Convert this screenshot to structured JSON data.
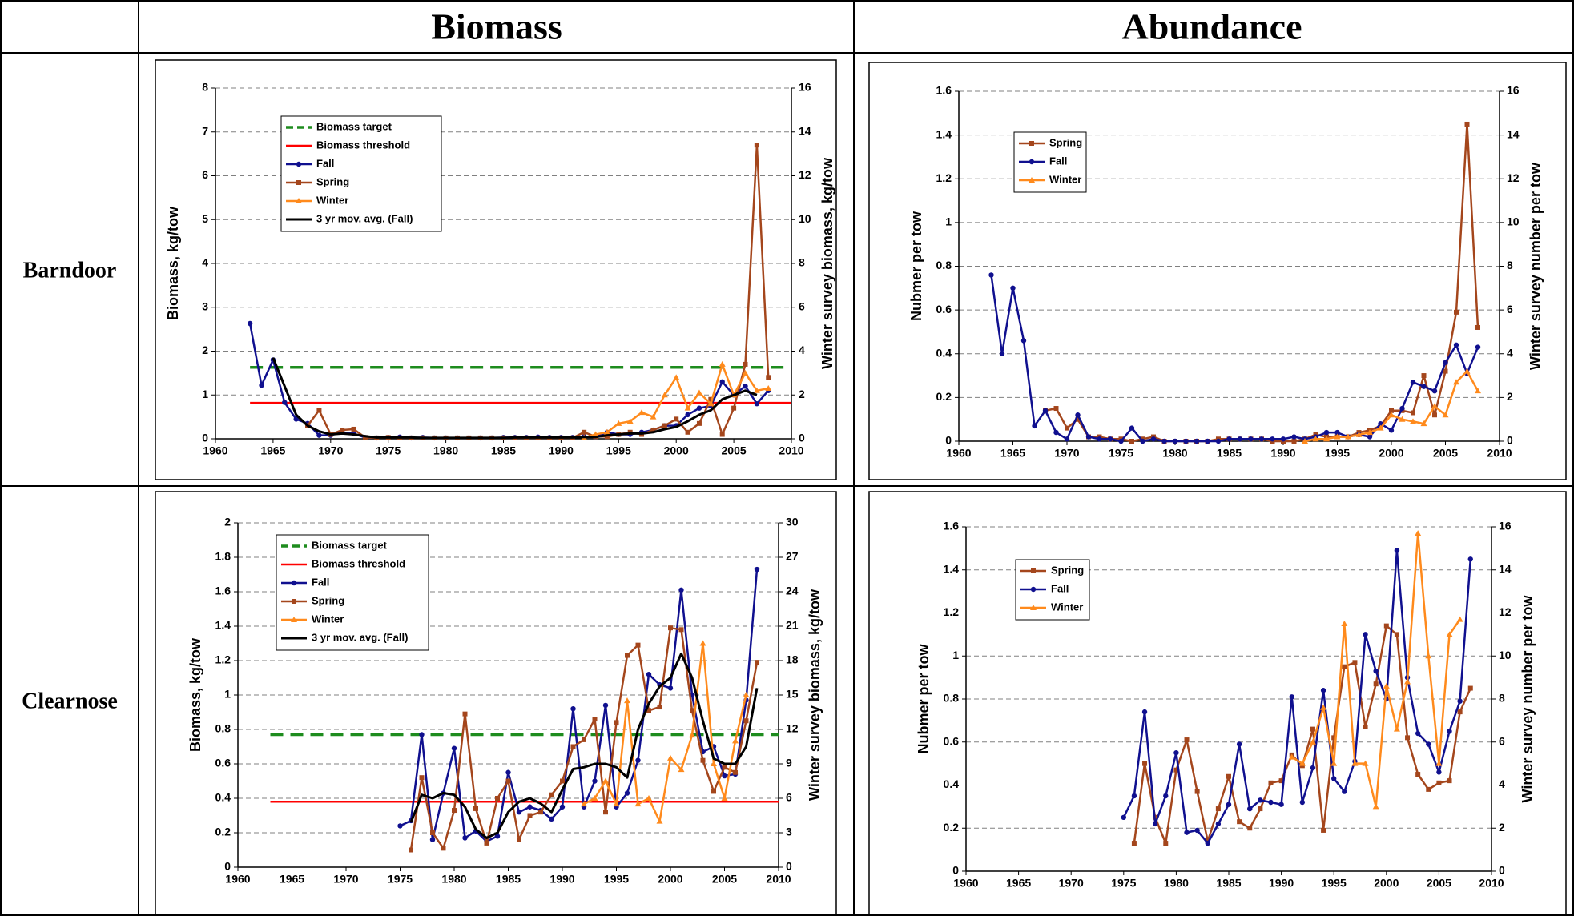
{
  "table": {
    "header": [
      "Biomass",
      "Abundance"
    ],
    "rows": [
      "Barndoor",
      "Clearnose"
    ]
  },
  "chart_data": [
    {
      "type": "line",
      "ylabel": "Biomass, kg/tow",
      "y2label": "Winter survey biomass, kg/tow",
      "grid": true,
      "xlim": [
        1960,
        2010
      ],
      "xticks": [
        1960,
        1965,
        1970,
        1975,
        1980,
        1985,
        1990,
        1995,
        2000,
        2005,
        2010
      ],
      "ylim": [
        0,
        8
      ],
      "yticks": [
        0,
        1,
        2,
        3,
        4,
        5,
        6,
        7,
        8
      ],
      "y2lim": [
        0,
        16
      ],
      "y2ticks": [
        0,
        2,
        4,
        6,
        8,
        10,
        12,
        14,
        16
      ],
      "x": [
        1963,
        1964,
        1965,
        1966,
        1967,
        1968,
        1969,
        1970,
        1971,
        1972,
        1973,
        1974,
        1975,
        1976,
        1977,
        1978,
        1979,
        1980,
        1981,
        1982,
        1983,
        1984,
        1985,
        1986,
        1987,
        1988,
        1989,
        1990,
        1991,
        1992,
        1993,
        1994,
        1995,
        1996,
        1997,
        1998,
        1999,
        2000,
        2001,
        2002,
        2003,
        2004,
        2005,
        2006,
        2007,
        2008
      ],
      "reference_lines": [
        {
          "name": "Biomass target",
          "value": 1.63,
          "x": [
            1963,
            2010
          ],
          "color": "#1e8c1e",
          "dash": true
        },
        {
          "name": "Biomass threshold",
          "value": 0.82,
          "x": [
            1963,
            2010
          ],
          "color": "#ff0000",
          "dash": false
        }
      ],
      "series": [
        {
          "name": "Fall",
          "color": "#10108f",
          "marker": "circle",
          "values": [
            2.63,
            1.22,
            1.8,
            0.83,
            0.45,
            0.35,
            0.08,
            0.08,
            0.15,
            0.12,
            0.03,
            0.02,
            0.03,
            0.04,
            0.02,
            0.03,
            0.02,
            0.02,
            0.02,
            0.02,
            0.02,
            0.02,
            0.03,
            0.03,
            0.03,
            0.04,
            0.03,
            0.03,
            0.03,
            0.05,
            0.05,
            0.15,
            0.1,
            0.1,
            0.15,
            0.2,
            0.3,
            0.3,
            0.55,
            0.7,
            0.75,
            1.3,
            1.0,
            1.2,
            0.8,
            1.1
          ]
        },
        {
          "name": "Spring",
          "color": "#a4461c",
          "marker": "square",
          "values": [
            null,
            null,
            null,
            null,
            null,
            0.3,
            0.65,
            0.1,
            0.2,
            0.22,
            0.03,
            0.02,
            0.03,
            0.02,
            0.02,
            0.02,
            0.02,
            0.02,
            0.02,
            0.02,
            0.02,
            0.02,
            0.02,
            0.02,
            0.02,
            0.02,
            0.02,
            0.02,
            0.02,
            0.15,
            0.05,
            0.05,
            0.1,
            0.15,
            0.1,
            0.2,
            0.3,
            0.45,
            0.15,
            0.35,
            0.9,
            0.1,
            0.7,
            1.7,
            6.7,
            1.4
          ]
        },
        {
          "name": "Winter",
          "color": "#ff8a1c",
          "marker": "triangle",
          "axis": "y2",
          "values": [
            null,
            null,
            null,
            null,
            null,
            null,
            null,
            null,
            null,
            null,
            null,
            null,
            null,
            null,
            null,
            null,
            null,
            null,
            null,
            null,
            null,
            null,
            null,
            null,
            null,
            null,
            null,
            null,
            null,
            0.05,
            0.2,
            0.3,
            0.7,
            0.8,
            1.2,
            1.0,
            2.0,
            2.8,
            1.4,
            2.1,
            1.6,
            3.4,
            2.0,
            3.0,
            2.2,
            2.3
          ]
        },
        {
          "name": "3 yr mov. avg. (Fall)",
          "color": "#000000",
          "marker": null,
          "values": [
            null,
            null,
            1.85,
            1.2,
            0.55,
            0.3,
            0.17,
            0.1,
            0.12,
            0.1,
            0.06,
            0.03,
            0.03,
            0.03,
            0.03,
            0.02,
            0.02,
            0.02,
            0.02,
            0.02,
            0.02,
            0.02,
            0.02,
            0.03,
            0.03,
            0.03,
            0.03,
            0.03,
            0.03,
            0.04,
            0.04,
            0.08,
            0.1,
            0.12,
            0.12,
            0.15,
            0.22,
            0.27,
            0.4,
            0.55,
            0.65,
            0.9,
            1.0,
            1.1,
            1.0,
            null
          ]
        }
      ]
    },
    {
      "type": "line",
      "ylabel": "Nubmer per tow",
      "y2label": "Winter survey number per tow",
      "grid": true,
      "xlim": [
        1960,
        2010
      ],
      "xticks": [
        1960,
        1965,
        1970,
        1975,
        1980,
        1985,
        1990,
        1995,
        2000,
        2005,
        2010
      ],
      "ylim": [
        0,
        1.6
      ],
      "yticks": [
        0,
        0.2,
        0.4,
        0.6,
        0.8,
        1,
        1.2,
        1.4,
        1.6
      ],
      "y2lim": [
        0,
        16
      ],
      "y2ticks": [
        0,
        2,
        4,
        6,
        8,
        10,
        12,
        14,
        16
      ],
      "x": [
        1963,
        1964,
        1965,
        1966,
        1967,
        1968,
        1969,
        1970,
        1971,
        1972,
        1973,
        1974,
        1975,
        1976,
        1977,
        1978,
        1979,
        1980,
        1981,
        1982,
        1983,
        1984,
        1985,
        1986,
        1987,
        1988,
        1989,
        1990,
        1991,
        1992,
        1993,
        1994,
        1995,
        1996,
        1997,
        1998,
        1999,
        2000,
        2001,
        2002,
        2003,
        2004,
        2005,
        2006,
        2007,
        2008
      ],
      "series": [
        {
          "name": "Spring",
          "color": "#a4461c",
          "marker": "square",
          "values": [
            null,
            null,
            null,
            null,
            null,
            0.14,
            0.15,
            0.06,
            0.1,
            0.02,
            0.02,
            0.01,
            0.01,
            0.0,
            0.01,
            0.02,
            0.0,
            0.0,
            0.0,
            0.0,
            0.0,
            0.01,
            0.01,
            0.01,
            0.01,
            0.01,
            0.0,
            0.0,
            0.0,
            0.01,
            0.03,
            0.02,
            0.02,
            0.02,
            0.04,
            0.05,
            0.07,
            0.14,
            0.14,
            0.13,
            0.3,
            0.12,
            0.32,
            0.59,
            1.45,
            0.52
          ]
        },
        {
          "name": "Fall",
          "color": "#10108f",
          "marker": "circle",
          "values": [
            0.76,
            0.4,
            0.7,
            0.46,
            0.07,
            0.14,
            0.04,
            0.01,
            0.12,
            0.02,
            0.01,
            0.01,
            0.0,
            0.06,
            0.0,
            0.01,
            0.0,
            0.0,
            0.0,
            0.0,
            0.0,
            0.0,
            0.01,
            0.01,
            0.01,
            0.01,
            0.01,
            0.01,
            0.02,
            0.01,
            0.02,
            0.04,
            0.04,
            0.02,
            0.03,
            0.02,
            0.08,
            0.05,
            0.15,
            0.27,
            0.25,
            0.23,
            0.36,
            0.44,
            0.31,
            0.43
          ]
        },
        {
          "name": "Winter",
          "color": "#ff8a1c",
          "marker": "triangle",
          "axis": "y2",
          "values": [
            null,
            null,
            null,
            null,
            null,
            null,
            null,
            null,
            null,
            null,
            null,
            null,
            null,
            null,
            null,
            null,
            null,
            null,
            null,
            null,
            null,
            null,
            null,
            null,
            null,
            null,
            null,
            null,
            null,
            0.0,
            0.1,
            0.1,
            0.2,
            0.2,
            0.3,
            0.4,
            0.6,
            1.2,
            1.0,
            0.9,
            0.8,
            1.6,
            1.2,
            2.7,
            3.2,
            2.3
          ]
        }
      ]
    },
    {
      "type": "line",
      "ylabel": "Biomass, kg/tow",
      "y2label": "Winter survey biomass, kg/tow",
      "grid": true,
      "xlim": [
        1960,
        2010
      ],
      "xticks": [
        1960,
        1965,
        1970,
        1975,
        1980,
        1985,
        1990,
        1995,
        2000,
        2005,
        2010
      ],
      "ylim": [
        0,
        2
      ],
      "yticks": [
        0,
        0.2,
        0.4,
        0.6,
        0.8,
        1,
        1.2,
        1.4,
        1.6,
        1.8,
        2
      ],
      "y2lim": [
        0,
        30
      ],
      "y2ticks": [
        0,
        3,
        6,
        9,
        12,
        15,
        18,
        21,
        24,
        27,
        30
      ],
      "x": [
        1975,
        1976,
        1977,
        1978,
        1979,
        1980,
        1981,
        1982,
        1983,
        1984,
        1985,
        1986,
        1987,
        1988,
        1989,
        1990,
        1991,
        1992,
        1993,
        1994,
        1995,
        1996,
        1997,
        1998,
        1999,
        2000,
        2001,
        2002,
        2003,
        2004,
        2005,
        2006,
        2007,
        2008
      ],
      "reference_lines": [
        {
          "name": "Biomass target",
          "value": 0.77,
          "x": [
            1963,
            2010
          ],
          "color": "#1e8c1e",
          "dash": true
        },
        {
          "name": "Biomass threshold",
          "value": 0.38,
          "x": [
            1963,
            2010
          ],
          "color": "#ff0000",
          "dash": false
        }
      ],
      "series": [
        {
          "name": "Fall",
          "color": "#10108f",
          "marker": "circle",
          "values": [
            0.24,
            0.27,
            0.77,
            0.16,
            0.43,
            0.69,
            0.17,
            0.21,
            0.15,
            0.18,
            0.55,
            0.32,
            0.35,
            0.33,
            0.28,
            0.35,
            0.92,
            0.35,
            0.5,
            0.94,
            0.35,
            0.43,
            0.62,
            1.12,
            1.06,
            1.04,
            1.61,
            1.0,
            0.67,
            0.7,
            0.53,
            0.54,
            0.97,
            1.73
          ]
        },
        {
          "name": "Spring",
          "color": "#a4461c",
          "marker": "square",
          "values": [
            null,
            0.1,
            0.52,
            0.2,
            0.11,
            0.33,
            0.89,
            0.34,
            0.14,
            0.4,
            0.5,
            0.16,
            0.3,
            0.32,
            0.42,
            0.5,
            0.7,
            0.74,
            0.86,
            0.32,
            0.84,
            1.23,
            1.29,
            0.91,
            0.93,
            1.39,
            1.38,
            0.91,
            0.62,
            0.44,
            0.58,
            0.55,
            0.85,
            1.19
          ]
        },
        {
          "name": "Winter",
          "color": "#ff8a1c",
          "marker": "triangle",
          "axis": "y2",
          "values": [
            null,
            null,
            null,
            null,
            null,
            null,
            null,
            null,
            null,
            null,
            null,
            null,
            null,
            null,
            null,
            null,
            null,
            5.5,
            6,
            7.5,
            5.5,
            14.5,
            5.5,
            6,
            4,
            9.5,
            8.5,
            11.5,
            19.5,
            9,
            6,
            11,
            15,
            null
          ]
        },
        {
          "name": "3 yr mov. avg. (Fall)",
          "color": "#000000",
          "marker": null,
          "values": [
            null,
            0.26,
            0.42,
            0.4,
            0.43,
            0.42,
            0.35,
            0.22,
            0.17,
            0.2,
            0.32,
            0.38,
            0.4,
            0.37,
            0.32,
            0.45,
            0.57,
            0.58,
            0.6,
            0.6,
            0.58,
            0.52,
            0.8,
            0.95,
            1.05,
            1.1,
            1.24,
            1.1,
            0.85,
            0.63,
            0.6,
            0.6,
            0.7,
            1.04
          ]
        }
      ]
    },
    {
      "type": "line",
      "ylabel": "Nubmer per tow",
      "y2label": "Winter survey number per tow",
      "grid": true,
      "xlim": [
        1960,
        2010
      ],
      "xticks": [
        1960,
        1965,
        1970,
        1975,
        1980,
        1985,
        1990,
        1995,
        2000,
        2005,
        2010
      ],
      "ylim": [
        0,
        1.6
      ],
      "yticks": [
        0,
        0.2,
        0.4,
        0.6,
        0.8,
        1,
        1.2,
        1.4,
        1.6
      ],
      "y2lim": [
        0,
        16
      ],
      "y2ticks": [
        0,
        2,
        4,
        6,
        8,
        10,
        12,
        14,
        16
      ],
      "x": [
        1975,
        1976,
        1977,
        1978,
        1979,
        1980,
        1981,
        1982,
        1983,
        1984,
        1985,
        1986,
        1987,
        1988,
        1989,
        1990,
        1991,
        1992,
        1993,
        1994,
        1995,
        1996,
        1997,
        1998,
        1999,
        2000,
        2001,
        2002,
        2003,
        2004,
        2005,
        2006,
        2007,
        2008
      ],
      "series": [
        {
          "name": "Spring",
          "color": "#a4461c",
          "marker": "square",
          "values": [
            null,
            0.13,
            0.5,
            0.25,
            0.13,
            0.47,
            0.61,
            0.37,
            0.14,
            0.29,
            0.44,
            0.23,
            0.2,
            0.29,
            0.41,
            0.42,
            0.54,
            0.49,
            0.66,
            0.19,
            0.62,
            0.95,
            0.97,
            0.67,
            0.87,
            1.14,
            1.1,
            0.62,
            0.45,
            0.38,
            0.41,
            0.42,
            0.74,
            0.85
          ]
        },
        {
          "name": "Fall",
          "color": "#10108f",
          "marker": "circle",
          "values": [
            0.25,
            0.35,
            0.74,
            0.22,
            0.35,
            0.55,
            0.18,
            0.19,
            0.13,
            0.22,
            0.31,
            0.59,
            0.29,
            0.33,
            0.32,
            0.31,
            0.81,
            0.32,
            0.48,
            0.84,
            0.43,
            0.37,
            0.51,
            1.1,
            0.93,
            0.8,
            1.49,
            0.9,
            0.64,
            0.59,
            0.46,
            0.65,
            0.79,
            1.45
          ]
        },
        {
          "name": "Winter",
          "color": "#ff8a1c",
          "marker": "triangle",
          "axis": "y2",
          "values": [
            null,
            null,
            null,
            null,
            null,
            null,
            null,
            null,
            null,
            null,
            null,
            null,
            null,
            null,
            null,
            null,
            5.3,
            5,
            6,
            7.6,
            5,
            11.5,
            5,
            5,
            3,
            8.6,
            6.6,
            8.8,
            15.7,
            10,
            5,
            11,
            11.7,
            null
          ]
        }
      ]
    }
  ]
}
